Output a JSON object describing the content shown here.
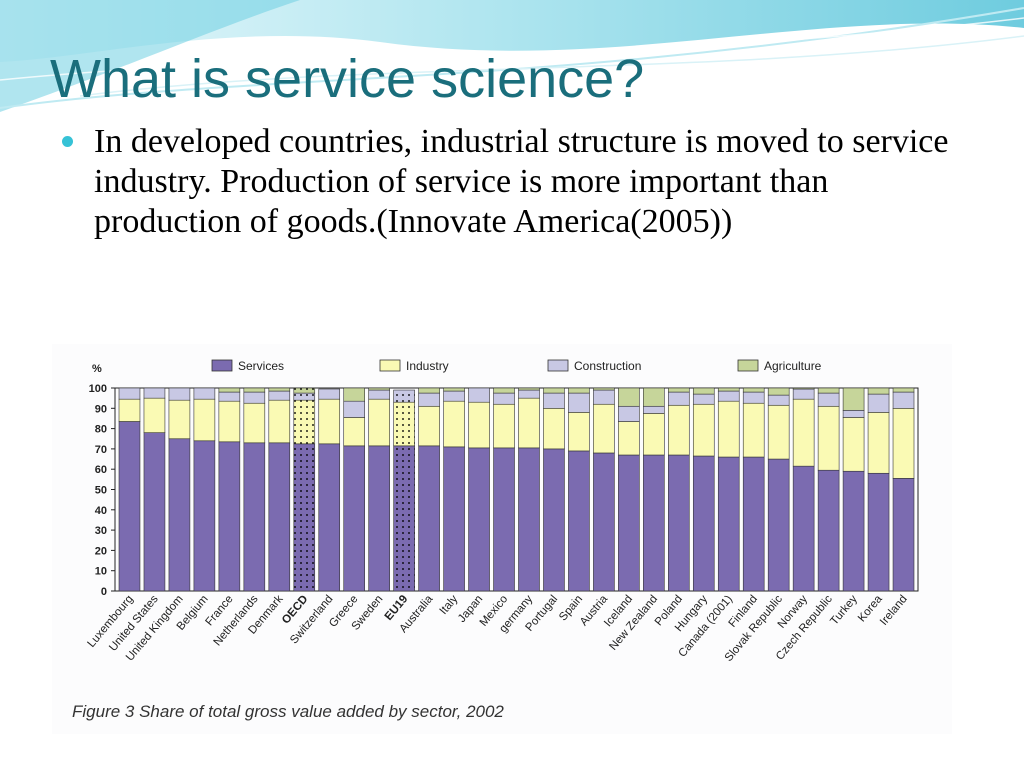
{
  "slide": {
    "title": "What is service science?",
    "bullet": "In developed countries, industrial structure is moved to service industry.  Production of service is more important than production of goods.(Innovate America(2005))",
    "theme_colors": {
      "title": "#1a6e7c",
      "bullet": "#36c2d6",
      "wave": "#5fc7dc"
    }
  },
  "figure": {
    "caption": "Figure 3  Share of total gross value added by sector, 2002"
  },
  "chart_data": {
    "type": "bar",
    "stacked": true,
    "title": "",
    "xlabel": "",
    "ylabel": "%",
    "ylim": [
      0,
      100
    ],
    "yticks": [
      0,
      10,
      20,
      30,
      40,
      50,
      60,
      70,
      80,
      90,
      100
    ],
    "grid": false,
    "legend_position": "top",
    "categories": [
      "Luxembourg",
      "United States",
      "United Kingdom",
      "Belgium",
      "France",
      "Netherlands",
      "Denmark",
      "OECD",
      "Switzerland",
      "Greece",
      "Sweden",
      "EU19",
      "Australia",
      "Italy",
      "Japan",
      "Mexico",
      "germany",
      "Portugal",
      "Spain",
      "Austria",
      "Iceland",
      "New Zealand",
      "Poland",
      "Hungary",
      "Canada (2001)",
      "Finland",
      "Slovak Republic",
      "Norway",
      "Czech Republic",
      "Turkey",
      "Korea",
      "Ireland"
    ],
    "bold_categories": [
      "OECD",
      "EU19"
    ],
    "dotted_categories": [
      "OECD",
      "EU19"
    ],
    "series": [
      {
        "name": "Services",
        "color": "#7b6bb0",
        "values": [
          83.5,
          78,
          75,
          74,
          73.5,
          73,
          73,
          72.5,
          72.5,
          71.5,
          71.5,
          71.5,
          71.5,
          71,
          70.5,
          70.5,
          70.5,
          70,
          69,
          68,
          67,
          67,
          67,
          66.5,
          66,
          66,
          65,
          61.5,
          59.5,
          59,
          58,
          55.5
        ]
      },
      {
        "name": "Industry",
        "color": "#fafab4",
        "values": [
          11,
          17,
          19,
          20.5,
          20,
          19.5,
          21,
          21.5,
          22,
          14,
          23,
          21.5,
          19.5,
          22.5,
          22.5,
          21.5,
          24.5,
          20,
          19,
          24,
          16.5,
          20.5,
          24.5,
          25.5,
          27.5,
          26.5,
          26.5,
          33,
          31.5,
          26.5,
          30,
          34.5
        ]
      },
      {
        "name": "Construction",
        "color": "#c8c8e4",
        "values": [
          5.5,
          5,
          6,
          5.5,
          4.5,
          5.5,
          4.5,
          3.5,
          5,
          8,
          4.5,
          6,
          6.5,
          5,
          7,
          5.5,
          4,
          7.5,
          9.5,
          7,
          7.5,
          3.5,
          6.5,
          5,
          5,
          5.5,
          5,
          5,
          6.5,
          3.5,
          9,
          8
        ]
      },
      {
        "name": "Agriculture",
        "color": "#c6d59a",
        "values": [
          0,
          0,
          0,
          0,
          2,
          2,
          1.5,
          2.5,
          0,
          6.5,
          1,
          0,
          2.5,
          1.5,
          0,
          2.5,
          1,
          2.5,
          2.5,
          1,
          9,
          9,
          2,
          3,
          1.5,
          2,
          3.5,
          0.5,
          2.5,
          11,
          3,
          2
        ]
      }
    ]
  }
}
